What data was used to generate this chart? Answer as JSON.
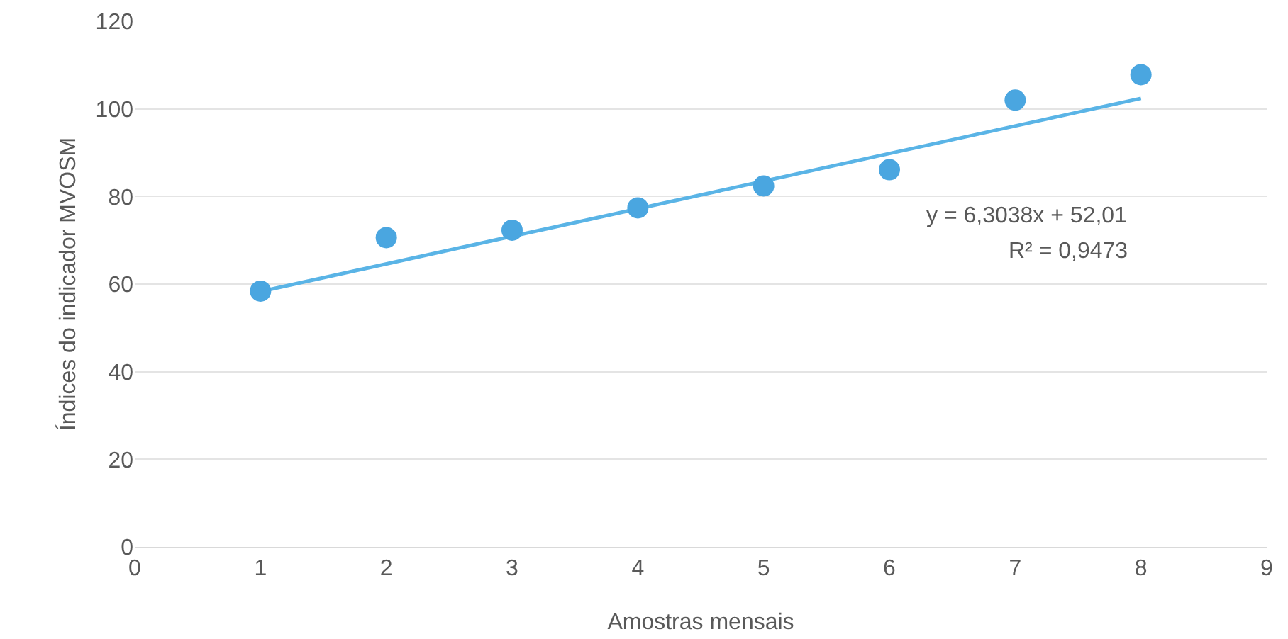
{
  "chart_data": {
    "type": "scatter",
    "xlabel": "Amostras mensais",
    "ylabel": "Índices do indicador MVOSM",
    "xlim": [
      0,
      9
    ],
    "xticks": [
      0,
      1,
      2,
      3,
      4,
      5,
      6,
      7,
      8,
      9
    ],
    "ylim": [
      0,
      120
    ],
    "yticks": [
      0,
      20,
      40,
      60,
      80,
      100,
      120
    ],
    "grid": "y",
    "series": [
      {
        "marker": "circle",
        "color": "#4aa6e0",
        "x": [
          1,
          2,
          3,
          4,
          5,
          6,
          7,
          8
        ],
        "values": [
          58.4,
          70.6,
          72.3,
          77.4,
          82.4,
          86.1,
          102,
          107.8
        ]
      },
      {
        "type": "line",
        "marker": "none",
        "color": "#5ab4e6",
        "x": [
          1,
          8
        ],
        "values": [
          58.3,
          102.4
        ]
      }
    ],
    "annotations": [
      "y = 6,3038x + 52,01",
      "R² = 0,9473"
    ]
  }
}
